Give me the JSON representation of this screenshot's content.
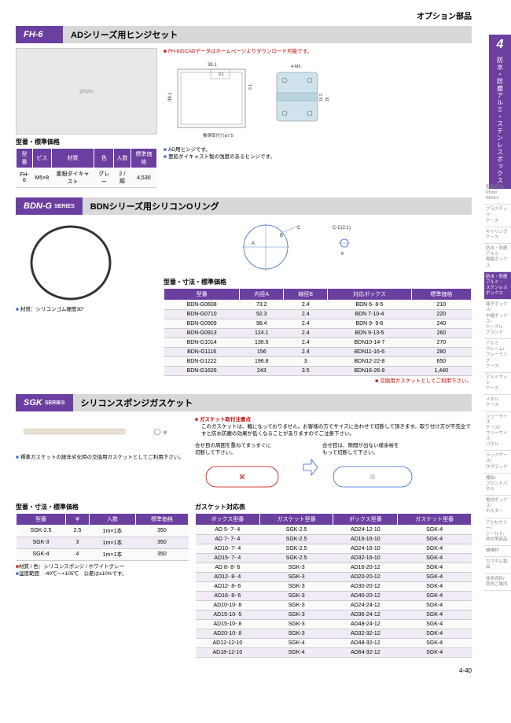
{
  "page": {
    "option_title": "オプション部品",
    "number": "4-40"
  },
  "side_tab": {
    "num": "4",
    "label": "防水・防塵アルミ・ステンレスボックス"
  },
  "side_menu": [
    {
      "label": "製品目次/\nPhoto\nINDEX",
      "active": false
    },
    {
      "label": "プラスチック\nケース",
      "active": false
    },
    {
      "label": "キャリング\nケース",
      "active": false
    },
    {
      "label": "防水・防塵\nアルミ\n樹脂ボックス",
      "active": false
    },
    {
      "label": "防水・防塵\nアルミ・\nステンレス\nボックス",
      "active": true
    },
    {
      "label": "端子ボックス/\n中継ボックス/\nケーブル\nグランド",
      "active": false
    },
    {
      "label": "アルミ\nフレーム/\nフレーミング\nケース",
      "active": false
    },
    {
      "label": "アルミサッシ\nケース",
      "active": false
    },
    {
      "label": "メタル\nケース",
      "active": false
    },
    {
      "label": "フリーサイズ\nケース/\nフリーサイズ\nパネル",
      "active": false
    },
    {
      "label": "ラックケース/\nサブラック",
      "active": false
    },
    {
      "label": "棚板/\nフロントパネル",
      "active": false
    },
    {
      "label": "電池ボックス/\nホルダー",
      "active": false
    },
    {
      "label": "アクセサリー/\nシールド/\n熱対策部品",
      "active": false
    },
    {
      "label": "機構材",
      "active": false
    },
    {
      "label": "カスタム製品",
      "active": false
    },
    {
      "label": "技術資料/\n其他ご案内",
      "active": false
    }
  ],
  "fh6": {
    "badge": "FH-6",
    "title": "ADシリーズ用ヒンジセット",
    "cad_note": "FH-6のCADデータはホームページよりダウンロード可能です。",
    "note1": "AD用ヒンジです。",
    "note2": "亜鉛ダイキャスト製の強度のあるヒンジです。",
    "table_title": "型番・標準価格",
    "columns": [
      "型番",
      "ビス",
      "材質",
      "色",
      "入数",
      "標準価格"
    ],
    "rows": [
      [
        "FH-6",
        "M5×8",
        "亜鉛ダイキャスト",
        "グレー",
        "2 / 組",
        "4,530"
      ]
    ],
    "dims": {
      "w1": "38.1",
      "w2": "38.1",
      "w3": "9.1",
      "h1": "9.1",
      "note": "推奨取付穴φ7.5",
      "d1": "4-M5",
      "d2": "16.2",
      "d3": "28"
    }
  },
  "bdng": {
    "badge": "BDN-G",
    "series": "SERIES",
    "title": "BDNシリーズ用シリコンOリング",
    "material_note": "材質：シリコンゴム硬度30°",
    "exchange_note": "交換用ガスケットとしてご利用下さい。",
    "table_title": "型番・寸法・標準価格",
    "columns": [
      "型番",
      "内径A",
      "線径B",
      "対応ボックス",
      "標準価格"
    ],
    "rows": [
      [
        "BDN-G0608",
        "73.2",
        "2.4",
        "BDN  6-  8-5",
        "210"
      ],
      [
        "BDN-G0710",
        "92.3",
        "2.4",
        "BDN  7-10-4",
        "220"
      ],
      [
        "BDN-G0909",
        "98.4",
        "2.4",
        "BDN  9-  9-6",
        "240"
      ],
      [
        "BDN-G0913",
        "124.1",
        "2.4",
        "BDN  9-13-5",
        "260"
      ],
      [
        "BDN-G1014",
        "136.6",
        "2.4",
        "BDN10-14-7",
        "270"
      ],
      [
        "BDN-G1116",
        "156",
        "2.4",
        "BDN11-16-6",
        "280"
      ],
      [
        "BDN-G1222",
        "196.8",
        "3",
        "BDN12-22-8",
        "650"
      ],
      [
        "BDN-G1626",
        "243",
        "3.5",
        "BDN16-26-9",
        "1,440"
      ]
    ],
    "diag": {
      "a": "A",
      "b": "B",
      "c": "C",
      "cc": "C-C(2:1)"
    }
  },
  "sgk": {
    "badge": "SGK",
    "series": "SERIES",
    "title": "シリコンスポンジガスケット",
    "use_note": "標準ガスケットの経年劣化時の交換用ガスケットとしてご利用下さい。",
    "caution_title": "ガスケット取付注意点",
    "caution_body": "このガスケットは、輪になっておりません。お客様の方でサイズに合わせて切断して頂きます。取り付け方が不完全ですと防水防塵の効果が低くなることがありますのでご注意下さい。",
    "cut_left": "合せ目の周囲を重ねてまっすぐに\n切断して下さい。",
    "cut_right": "合せ目は、隙間が出ない様余裕を\nもって切断して下さい。",
    "matcolor": "材質 / 色：シリコンスポンジ / ホワイトグレー",
    "temp": "温度範囲　-40℃～+105℃　公差は±10%です。",
    "table1_title": "型番・寸法・標準価格",
    "t1_columns": [
      "型番",
      "φ",
      "入数",
      "標準価格"
    ],
    "t1_rows": [
      [
        "SGK-2.5",
        "2.5",
        "1m×1本",
        "350"
      ],
      [
        "SGK-3",
        "3",
        "1m×1本",
        "350"
      ],
      [
        "SGK-4",
        "4",
        "1m×1本",
        "350"
      ]
    ],
    "table2_title": "ガスケット対応表",
    "t2_columns": [
      "ボックス型番",
      "ガスケット型番",
      "ボックス型番",
      "ガスケット型番"
    ],
    "t2_rows": [
      [
        "AD  5-  7-  4",
        "SGK-2.5",
        "AD24-12-10",
        "SGK-4"
      ],
      [
        "AD  7-  7-  4",
        "SGK-2.5",
        "AD16-16-10",
        "SGK-4"
      ],
      [
        "AD10-  7-  4",
        "SGK-2.5",
        "AD24-16-10",
        "SGK-4"
      ],
      [
        "AD15-  7-  4",
        "SGK-2.5",
        "AD32-16-10",
        "SGK-4"
      ],
      [
        "AD  8-  8-  6",
        "SGK-3",
        "AD16-20-12",
        "SGK-4"
      ],
      [
        "AD12-  8-  4",
        "SGK-3",
        "AD20-20-12",
        "SGK-4"
      ],
      [
        "AD12-  8-  6",
        "SGK-3",
        "AD30-20-12",
        "SGK-4"
      ],
      [
        "AD16-  8-  6",
        "SGK-3",
        "AD40-20-12",
        "SGK-4"
      ],
      [
        "AD10-10-  8",
        "SGK-3",
        "AD24-24-12",
        "SGK-4"
      ],
      [
        "AD15-10-  5",
        "SGK-3",
        "AD36-24-12",
        "SGK-4"
      ],
      [
        "AD15-10-  8",
        "SGK-3",
        "AD48-24-12",
        "SGK-4"
      ],
      [
        "AD20-10-  8",
        "SGK-3",
        "AD32-32-12",
        "SGK-4"
      ],
      [
        "AD12-12-10",
        "SGK-4",
        "AD48-32-12",
        "SGK-4"
      ],
      [
        "AD18-12-10",
        "SGK-4",
        "AD64-32-12",
        "SGK-4"
      ]
    ],
    "phi": "φ"
  }
}
